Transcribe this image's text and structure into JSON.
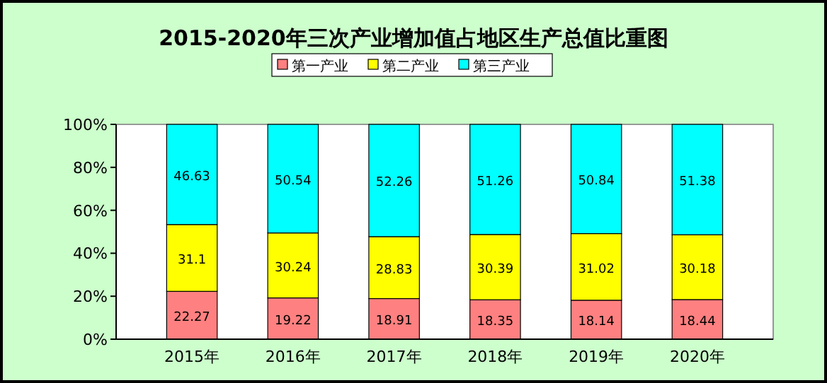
{
  "chart_data": {
    "type": "bar",
    "title": "2015-2020年三次产业增加值占地区生产总值比重图",
    "categories": [
      "2015年",
      "2016年",
      "2017年",
      "2018年",
      "2019年",
      "2020年"
    ],
    "stacked": true,
    "data_labels": true,
    "grid": false,
    "legend": "top",
    "ylim": [
      0,
      100
    ],
    "yticks": [
      {
        "value": 0,
        "label": "0%"
      },
      {
        "value": 20,
        "label": "20%"
      },
      {
        "value": 40,
        "label": "40%"
      },
      {
        "value": 60,
        "label": "60%"
      },
      {
        "value": 80,
        "label": "80%"
      },
      {
        "value": 100,
        "label": "100%"
      }
    ],
    "series": [
      {
        "name": "第一产业",
        "color": "#ff8080",
        "values": [
          22.27,
          19.22,
          18.91,
          18.35,
          18.14,
          18.44
        ]
      },
      {
        "name": "第二产业",
        "color": "#ffff00",
        "values": [
          31.1,
          30.24,
          28.83,
          30.39,
          31.02,
          30.18
        ]
      },
      {
        "name": "第三产业",
        "color": "#00ffff",
        "values": [
          46.63,
          50.54,
          52.26,
          51.26,
          50.84,
          51.38
        ]
      }
    ]
  }
}
